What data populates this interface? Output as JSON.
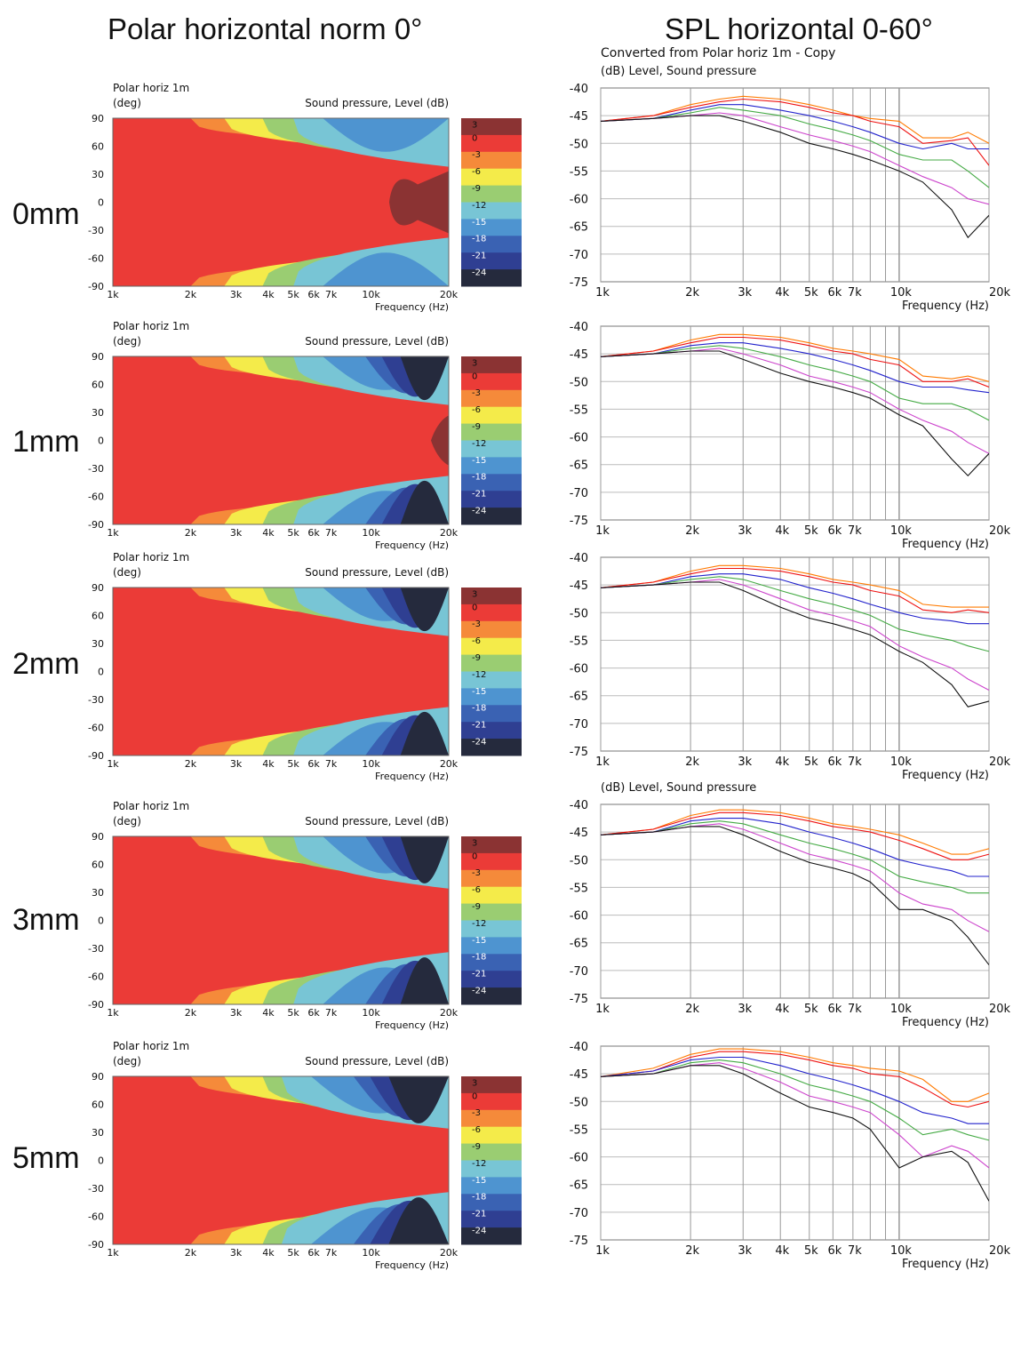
{
  "headers": {
    "left": "Polar horizontal norm 0°",
    "right": "SPL horizontal 0-60°"
  },
  "colors": {
    "band_colors": [
      "#8B3333",
      "#EB3B37",
      "#F58A3A",
      "#F4EB4A",
      "#9ACD72",
      "#78C5D5",
      "#4E94D0",
      "#3A62B3",
      "#2F3F92",
      "#252A3D"
    ],
    "series": {
      "0deg": "#FF7A00",
      "10deg": "#EE1111",
      "20deg": "#22AA22",
      "30deg": "#2222CC",
      "40deg": "#44AA44",
      "50deg": "#CC44CC",
      "60deg": "#111111"
    }
  },
  "polar_common": {
    "title": "Polar horiz 1m",
    "ylabel": "(deg)",
    "zlabel": "Sound pressure, Level  (dB)",
    "xlabel": "Frequency  (Hz)",
    "xticks": [
      "1k",
      "2k",
      "3k",
      "4k",
      "5k",
      "6k",
      "7k",
      "10k",
      "20k"
    ],
    "yticks": [
      "90",
      "60",
      "30",
      "0",
      "-30",
      "-60",
      "-90"
    ],
    "legend": [
      "3",
      "0",
      "-3",
      "-6",
      "-9",
      "-12",
      "-15",
      "-18",
      "-21",
      "-24"
    ]
  },
  "spl_common": {
    "xlabel": "Frequency  (Hz)",
    "xticks": [
      "1k",
      "2k",
      "3k",
      "4k",
      "5k",
      "6k",
      "7k",
      "10k",
      "20k"
    ],
    "yticks": [
      "-40",
      "-45",
      "-50",
      "-55",
      "-60",
      "-65",
      "-70",
      "-75"
    ],
    "subtitle": "(dB)  Level, Sound pressure"
  },
  "rows": [
    {
      "label": "0mm",
      "spl_title": "Converted from Polar horiz 1m - Copy",
      "spl_subtitle": "(dB)  Level, Sound pressure",
      "polar_title": "Polar horiz 1m"
    },
    {
      "label": "1mm",
      "spl_title": "",
      "spl_subtitle": "",
      "polar_title": "Polar horiz 1m"
    },
    {
      "label": "2mm",
      "spl_title": "",
      "spl_subtitle": "",
      "polar_title": "Polar horiz 1m"
    },
    {
      "label": "3mm",
      "spl_title": "",
      "spl_subtitle": "(dB)  Level, Sound pressure",
      "polar_title": "Polar horiz 1m"
    },
    {
      "label": "5mm",
      "spl_title": "",
      "spl_subtitle": "",
      "polar_title": "Polar horiz 1m"
    }
  ],
  "chart_data": [
    {
      "type": "line",
      "panel": "0mm",
      "xlabel": "Frequency  (Hz)",
      "xscale": "log",
      "xlim": [
        1000,
        20000
      ],
      "ylim": [
        -75,
        -40
      ],
      "x": [
        1000,
        1500,
        2000,
        2500,
        3000,
        4000,
        5000,
        6000,
        7000,
        8000,
        10000,
        12000,
        15000,
        17000,
        20000
      ],
      "series": [
        {
          "values": [
            -46,
            -45,
            -43,
            -42,
            -41.5,
            -42,
            -43,
            -44,
            -45,
            -45.5,
            -46,
            -49,
            -49,
            -48,
            -50
          ]
        },
        {
          "values": [
            -46,
            -45,
            -43.5,
            -42.5,
            -42,
            -42.5,
            -43.5,
            -44.5,
            -45,
            -46,
            -47,
            -50,
            -49.5,
            -49,
            -54
          ]
        },
        {
          "values": [
            -46,
            -45.5,
            -44,
            -43,
            -43,
            -44,
            -45,
            -46,
            -47,
            -48,
            -50,
            -51,
            -50,
            -51,
            -51
          ]
        },
        {
          "values": [
            -46,
            -45.5,
            -44.5,
            -43.5,
            -44,
            -45,
            -46.5,
            -47.5,
            -48.5,
            -49.5,
            -52,
            -53,
            -53,
            -55,
            -58
          ]
        },
        {
          "values": [
            -46,
            -45.5,
            -45,
            -44.5,
            -45,
            -47,
            -48.5,
            -49.5,
            -50.5,
            -51.5,
            -54,
            -56,
            -58,
            -60,
            -61
          ]
        },
        {
          "values": [
            -46,
            -45.5,
            -45,
            -45,
            -46,
            -48,
            -50,
            -51,
            -52,
            -53,
            -55,
            -57,
            -62,
            -67,
            -63
          ]
        }
      ]
    },
    {
      "type": "line",
      "panel": "1mm",
      "xlabel": "Frequency  (Hz)",
      "xscale": "log",
      "xlim": [
        1000,
        20000
      ],
      "ylim": [
        -75,
        -40
      ],
      "x": [
        1000,
        1500,
        2000,
        2500,
        3000,
        4000,
        5000,
        6000,
        7000,
        8000,
        10000,
        12000,
        15000,
        17000,
        20000
      ],
      "series": [
        {
          "values": [
            -45.5,
            -44.5,
            -42.5,
            -41.5,
            -41.5,
            -42,
            -43,
            -44,
            -44.5,
            -45,
            -46,
            -49,
            -49.5,
            -49,
            -50
          ]
        },
        {
          "values": [
            -45.5,
            -44.5,
            -43,
            -42,
            -42,
            -42.5,
            -43.5,
            -44.5,
            -45,
            -46,
            -47,
            -50,
            -50,
            -49.5,
            -51
          ]
        },
        {
          "values": [
            -45.5,
            -45,
            -43.5,
            -43,
            -43,
            -44,
            -45,
            -46,
            -47,
            -48,
            -50,
            -51,
            -51,
            -51.5,
            -52
          ]
        },
        {
          "values": [
            -45.5,
            -45,
            -44,
            -43.5,
            -44,
            -45.5,
            -47,
            -48,
            -49,
            -50,
            -53,
            -54,
            -54,
            -55,
            -57
          ]
        },
        {
          "values": [
            -45.5,
            -45,
            -44.5,
            -44,
            -45,
            -47,
            -49,
            -50,
            -51,
            -52,
            -55,
            -57,
            -59,
            -61,
            -63
          ]
        },
        {
          "values": [
            -45.5,
            -45,
            -44.5,
            -44.5,
            -46,
            -48.5,
            -50,
            -51,
            -52,
            -53,
            -56,
            -58,
            -64,
            -67,
            -63
          ]
        }
      ]
    },
    {
      "type": "line",
      "panel": "2mm",
      "xlabel": "Frequency  (Hz)",
      "xscale": "log",
      "xlim": [
        1000,
        20000
      ],
      "ylim": [
        -75,
        -40
      ],
      "x": [
        1000,
        1500,
        2000,
        2500,
        3000,
        4000,
        5000,
        6000,
        7000,
        8000,
        10000,
        12000,
        15000,
        17000,
        20000
      ],
      "series": [
        {
          "values": [
            -45.5,
            -44.5,
            -42.5,
            -41.5,
            -41.5,
            -42,
            -43,
            -44,
            -44.5,
            -45,
            -46,
            -48.5,
            -49,
            -49,
            -49
          ]
        },
        {
          "values": [
            -45.5,
            -44.5,
            -43,
            -42,
            -42,
            -42.5,
            -43.5,
            -44.5,
            -45,
            -46,
            -47,
            -49.5,
            -50,
            -49.5,
            -50
          ]
        },
        {
          "values": [
            -45.5,
            -45,
            -43.5,
            -43,
            -43,
            -44,
            -45.5,
            -46.5,
            -47.5,
            -48.5,
            -50,
            -51,
            -51.5,
            -52,
            -52
          ]
        },
        {
          "values": [
            -45.5,
            -45,
            -44,
            -43.5,
            -44,
            -46,
            -47.5,
            -48.5,
            -49.5,
            -50.5,
            -53,
            -54,
            -55,
            -56,
            -57
          ]
        },
        {
          "values": [
            -45.5,
            -45,
            -44.5,
            -44,
            -45,
            -47.5,
            -49.5,
            -50.5,
            -51.5,
            -52.5,
            -56,
            -58,
            -60,
            -62,
            -64
          ]
        },
        {
          "values": [
            -45.5,
            -45,
            -44.5,
            -44.5,
            -46,
            -49,
            -51,
            -52,
            -53,
            -54,
            -57,
            -59,
            -63,
            -67,
            -66
          ]
        }
      ]
    },
    {
      "type": "line",
      "panel": "3mm",
      "xlabel": "Frequency  (Hz)",
      "xscale": "log",
      "xlim": [
        1000,
        20000
      ],
      "ylim": [
        -75,
        -40
      ],
      "x": [
        1000,
        1500,
        2000,
        2500,
        3000,
        4000,
        5000,
        6000,
        7000,
        8000,
        10000,
        12000,
        15000,
        17000,
        20000
      ],
      "series": [
        {
          "values": [
            -45.5,
            -44.5,
            -42,
            -41,
            -41,
            -41.5,
            -42.5,
            -43.5,
            -44,
            -44.5,
            -45.5,
            -47,
            -49,
            -49,
            -48
          ]
        },
        {
          "values": [
            -45.5,
            -44.5,
            -42.5,
            -41.5,
            -41.5,
            -42,
            -43,
            -44,
            -44.5,
            -45,
            -46.5,
            -48,
            -50,
            -50,
            -49
          ]
        },
        {
          "values": [
            -45.5,
            -45,
            -43,
            -42.5,
            -42.5,
            -43.5,
            -45,
            -46,
            -47,
            -48,
            -50,
            -51,
            -52,
            -53,
            -53
          ]
        },
        {
          "values": [
            -45.5,
            -45,
            -43.5,
            -43,
            -43.5,
            -45.5,
            -47,
            -48,
            -49,
            -50,
            -53,
            -54,
            -55,
            -56,
            -56
          ]
        },
        {
          "values": [
            -45.5,
            -45,
            -44,
            -43.5,
            -44.5,
            -47,
            -49,
            -50,
            -51,
            -52,
            -56,
            -58,
            -59,
            -61,
            -63
          ]
        },
        {
          "values": [
            -45.5,
            -45,
            -44,
            -44,
            -45.5,
            -48.5,
            -50.5,
            -51.5,
            -52.5,
            -54,
            -59,
            -59,
            -61,
            -64,
            -69
          ]
        }
      ]
    },
    {
      "type": "line",
      "panel": "5mm",
      "xlabel": "Frequency  (Hz)",
      "xscale": "log",
      "xlim": [
        1000,
        20000
      ],
      "ylim": [
        -75,
        -40
      ],
      "x": [
        1000,
        1500,
        2000,
        2500,
        3000,
        4000,
        5000,
        6000,
        7000,
        8000,
        10000,
        12000,
        15000,
        17000,
        20000
      ],
      "series": [
        {
          "values": [
            -45.5,
            -44,
            -41.5,
            -40.5,
            -40.5,
            -41,
            -42,
            -43,
            -43.5,
            -44,
            -44.5,
            -46,
            -50,
            -50,
            -48.5
          ]
        },
        {
          "values": [
            -45.5,
            -44.5,
            -42,
            -41,
            -41,
            -41.5,
            -42.5,
            -43.5,
            -44,
            -45,
            -45.5,
            -47.5,
            -50.5,
            -51,
            -50
          ]
        },
        {
          "values": [
            -45.5,
            -44.5,
            -42.5,
            -42,
            -42,
            -43.5,
            -45,
            -46,
            -47,
            -48,
            -50,
            -52,
            -53,
            -54,
            -54
          ]
        },
        {
          "values": [
            -45.5,
            -45,
            -43,
            -42.5,
            -43,
            -45,
            -47,
            -48,
            -49,
            -50,
            -53,
            -56,
            -55,
            -56,
            -57
          ]
        },
        {
          "values": [
            -45.5,
            -45,
            -43.5,
            -43,
            -44,
            -46.5,
            -49,
            -50,
            -51,
            -52,
            -56,
            -60,
            -58,
            -59,
            -62
          ]
        },
        {
          "values": [
            -45.5,
            -45,
            -43.5,
            -43.5,
            -45,
            -48.5,
            -51,
            -52,
            -53,
            -55,
            -62,
            -60,
            -59,
            -61,
            -68
          ]
        }
      ]
    }
  ]
}
